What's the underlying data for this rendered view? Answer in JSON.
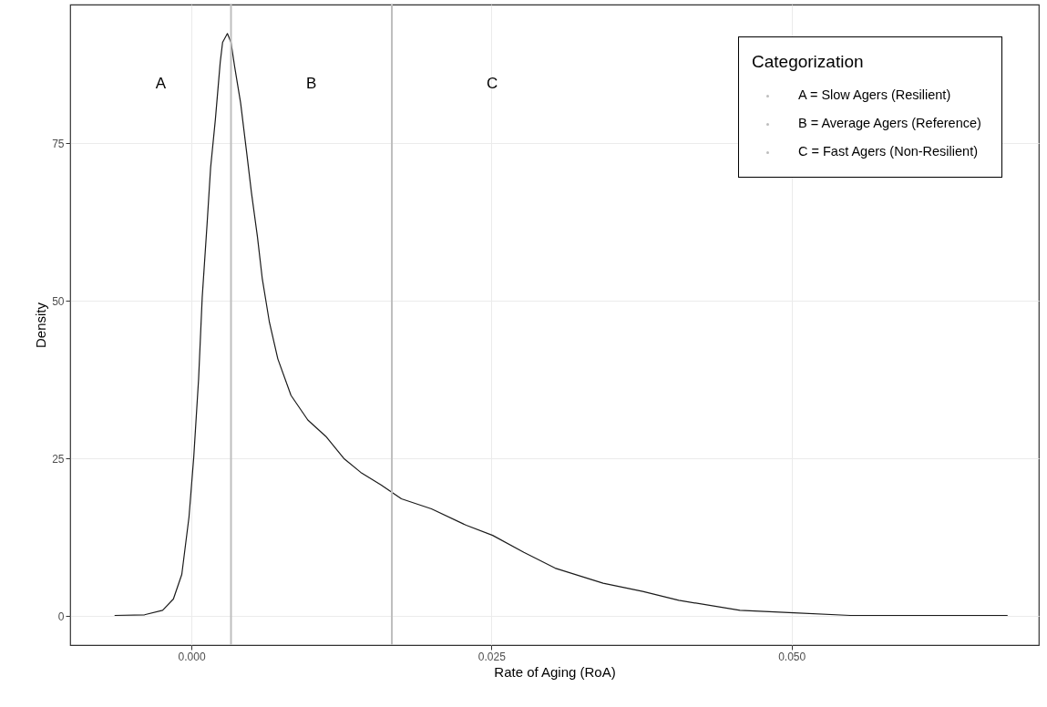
{
  "chart_data": {
    "type": "line",
    "xlabel": "Rate of Aging (RoA)",
    "ylabel": "Density",
    "legend_title": "Categorization",
    "grid": true,
    "xlim": [
      -0.0101,
      0.0706
    ],
    "ylim": [
      -4.6,
      97.0
    ],
    "xticks": [
      {
        "value": 0,
        "label": "0.000"
      },
      {
        "value": 0.025,
        "label": "0.025"
      },
      {
        "value": 0.05,
        "label": "0.050"
      }
    ],
    "yticks": [
      0,
      25,
      50,
      75
    ],
    "series": [
      {
        "color": "#1a1a1a",
        "x": [
          -0.0064,
          -0.0039,
          -0.0024,
          -0.0015,
          -0.0008,
          -0.0002,
          0.0002,
          0.0006,
          0.0009,
          0.0013,
          0.0016,
          0.002,
          0.0024,
          0.0026,
          0.003,
          0.0033,
          0.0036,
          0.0041,
          0.0046,
          0.005,
          0.0055,
          0.0059,
          0.0065,
          0.0072,
          0.0083,
          0.0097,
          0.0112,
          0.0127,
          0.0141,
          0.0158,
          0.0175,
          0.02,
          0.0229,
          0.0251,
          0.0277,
          0.0303,
          0.0343,
          0.0376,
          0.0406,
          0.0457,
          0.0502,
          0.0549,
          0.068
        ],
        "values": [
          0.1,
          0.2,
          0.9,
          2.7,
          6.6,
          15.7,
          25.3,
          37.6,
          50.5,
          62.0,
          71.1,
          78.8,
          87.8,
          91.0,
          92.4,
          91.0,
          87.2,
          81.4,
          73.6,
          67.2,
          60.2,
          53.6,
          46.6,
          40.8,
          35.0,
          31.1,
          28.5,
          25.0,
          22.8,
          20.8,
          18.6,
          17.0,
          14.4,
          12.8,
          10.1,
          7.6,
          5.2,
          3.9,
          2.5,
          0.9,
          0.5,
          0.1,
          0.1
        ]
      }
    ],
    "ref_lines": [
      {
        "axis": "x",
        "value": 0.0033,
        "color": "#bebebe"
      },
      {
        "axis": "x",
        "value": 0.0167,
        "color": "#bebebe"
      }
    ],
    "annotations": [
      "A",
      "B",
      "C",
      "A = Slow Agers (Resilient)",
      "B = Average Agers (Reference)",
      "C = Fast Agers (Non-Resilient)"
    ]
  }
}
